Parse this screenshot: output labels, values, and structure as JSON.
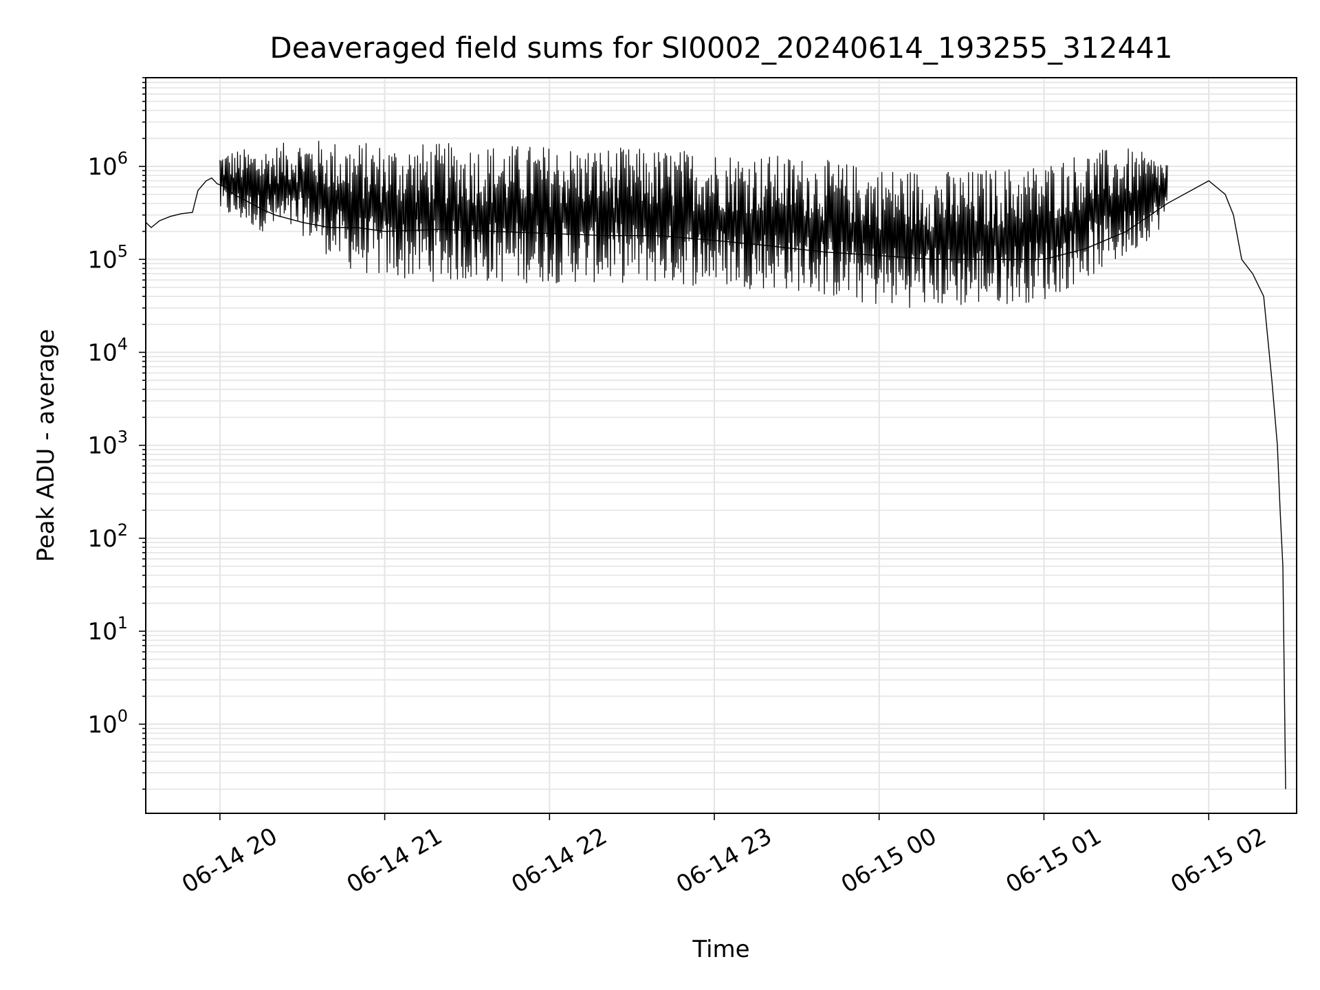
{
  "chart_data": {
    "type": "line",
    "title": "Deaveraged field sums for SI0002_20240614_193255_312441",
    "xlabel": "Time",
    "ylabel": "Peak ADU - average",
    "yscale": "log",
    "grid": true,
    "xlim": [
      "2024-06-14 19:33",
      "2024-06-15 02:32"
    ],
    "ylim": [
      0.11,
      9000000
    ],
    "x_ticks": [
      {
        "value": "2024-06-14 20:00",
        "label": "06-14 20"
      },
      {
        "value": "2024-06-14 21:00",
        "label": "06-14 21"
      },
      {
        "value": "2024-06-14 22:00",
        "label": "06-14 22"
      },
      {
        "value": "2024-06-14 23:00",
        "label": "06-14 23"
      },
      {
        "value": "2024-06-15 00:00",
        "label": "06-15 00"
      },
      {
        "value": "2024-06-15 01:00",
        "label": "06-15 01"
      },
      {
        "value": "2024-06-15 02:00",
        "label": "06-15 02"
      }
    ],
    "y_ticks": [
      {
        "value": 1,
        "base": "10",
        "exp": "0"
      },
      {
        "value": 10,
        "base": "10",
        "exp": "1"
      },
      {
        "value": 100,
        "base": "10",
        "exp": "2"
      },
      {
        "value": 1000,
        "base": "10",
        "exp": "3"
      },
      {
        "value": 10000,
        "base": "10",
        "exp": "4"
      },
      {
        "value": 100000,
        "base": "10",
        "exp": "5"
      },
      {
        "value": 1000000,
        "base": "10",
        "exp": "6"
      }
    ],
    "series": [
      {
        "color": "#000000",
        "x": [
          "2024-06-14 19:33",
          "2024-06-14 19:35",
          "2024-06-14 19:38",
          "2024-06-14 19:42",
          "2024-06-14 19:46",
          "2024-06-14 19:50",
          "2024-06-14 19:52",
          "2024-06-14 19:55",
          "2024-06-14 19:57",
          "2024-06-14 19:59",
          "2024-06-14 20:02",
          "2024-06-14 20:05",
          "2024-06-14 20:10",
          "2024-06-14 20:15",
          "2024-06-14 20:20",
          "2024-06-14 20:30",
          "2024-06-14 20:40",
          "2024-06-14 20:50",
          "2024-06-14 21:00",
          "2024-06-14 21:20",
          "2024-06-14 21:40",
          "2024-06-14 22:00",
          "2024-06-14 22:20",
          "2024-06-14 22:40",
          "2024-06-14 23:00",
          "2024-06-14 23:20",
          "2024-06-14 23:40",
          "2024-06-15 00:00",
          "2024-06-15 00:20",
          "2024-06-15 00:40",
          "2024-06-15 01:00",
          "2024-06-15 01:15",
          "2024-06-15 01:30",
          "2024-06-15 01:45",
          "2024-06-15 02:00",
          "2024-06-15 02:06",
          "2024-06-15 02:09",
          "2024-06-15 02:12",
          "2024-06-15 02:16",
          "2024-06-15 02:20",
          "2024-06-15 02:23",
          "2024-06-15 02:25",
          "2024-06-15 02:26",
          "2024-06-15 02:27",
          "2024-06-15 02:28"
        ],
        "y": [
          250000,
          220000,
          260000,
          290000,
          310000,
          320000,
          550000,
          700000,
          750000,
          650000,
          600000,
          500000,
          420000,
          350000,
          300000,
          250000,
          220000,
          220000,
          200000,
          210000,
          200000,
          190000,
          180000,
          180000,
          160000,
          140000,
          120000,
          110000,
          100000,
          100000,
          100000,
          130000,
          200000,
          400000,
          700000,
          500000,
          300000,
          100000,
          70000,
          40000,
          5000,
          1000,
          200,
          50,
          0.2
        ]
      }
    ],
    "envelope": {
      "x": [
        "2024-06-14 20:00",
        "2024-06-14 20:15",
        "2024-06-14 20:30",
        "2024-06-14 20:45",
        "2024-06-14 21:00",
        "2024-06-14 21:30",
        "2024-06-14 22:00",
        "2024-06-14 22:30",
        "2024-06-14 23:00",
        "2024-06-14 23:30",
        "2024-06-15 00:00",
        "2024-06-15 00:30",
        "2024-06-15 01:00",
        "2024-06-15 01:15",
        "2024-06-15 01:30",
        "2024-06-15 01:45"
      ],
      "upper": [
        1500000,
        1600000,
        2000000,
        1900000,
        1800000,
        1800000,
        1700000,
        1600000,
        1500000,
        1300000,
        1000000,
        900000,
        1100000,
        1500000,
        1600000,
        1200000
      ],
      "lower": [
        300000,
        200000,
        180000,
        80000,
        60000,
        55000,
        55000,
        55000,
        50000,
        45000,
        30000,
        30000,
        35000,
        60000,
        100000,
        250000
      ]
    }
  }
}
